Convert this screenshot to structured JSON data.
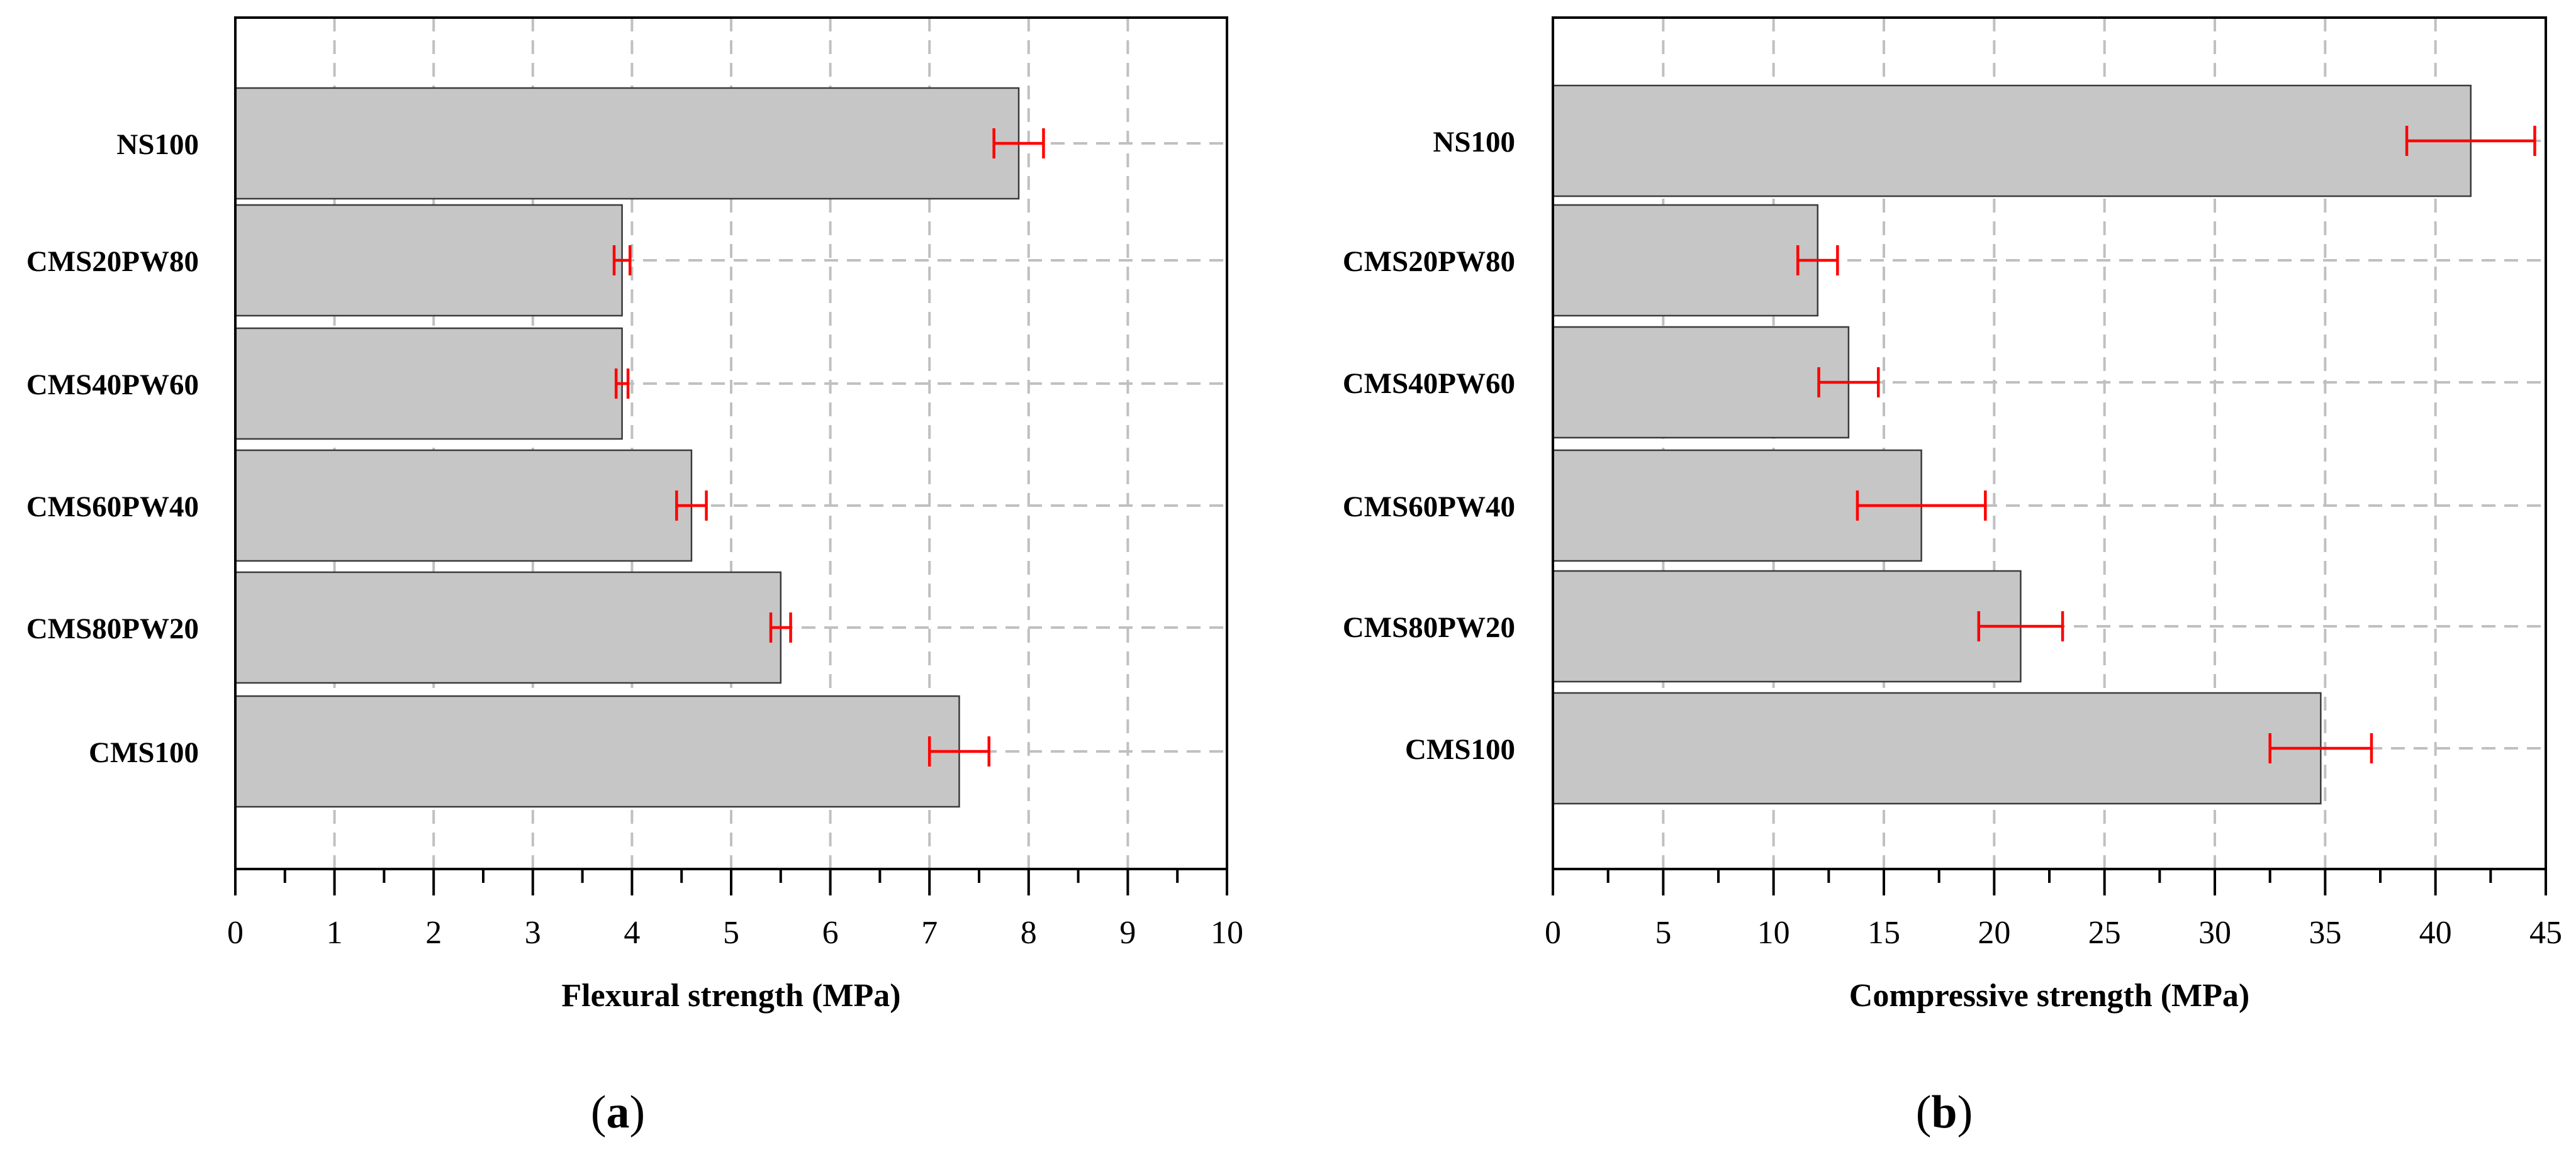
{
  "chart_data": [
    {
      "type": "bar",
      "orientation": "horizontal",
      "panel_label": "a",
      "categories": [
        "NS100",
        "CMS20PW80",
        "CMS40PW60",
        "CMS60PW40",
        "CMS80PW20",
        "CMS100"
      ],
      "values": [
        7.9,
        3.9,
        3.9,
        4.6,
        5.5,
        7.3
      ],
      "errors": [
        0.25,
        0.08,
        0.06,
        0.15,
        0.1,
        0.3
      ],
      "xlabel": "Flexural strength (MPa)",
      "ylabel": "",
      "xlim": [
        0,
        10
      ],
      "major_ticks": [
        0,
        1,
        2,
        3,
        4,
        5,
        6,
        7,
        8,
        9,
        10
      ],
      "minor_tick_step": 0.5,
      "grid": true,
      "colors": {
        "bar": "#c6c6c6",
        "error": "#ff0000",
        "grid": "#c0c0c0"
      }
    },
    {
      "type": "bar",
      "orientation": "horizontal",
      "panel_label": "b",
      "categories": [
        "NS100",
        "CMS20PW80",
        "CMS40PW60",
        "CMS60PW40",
        "CMS80PW20",
        "CMS100"
      ],
      "values": [
        41.6,
        12.0,
        13.4,
        16.7,
        21.2,
        34.8
      ],
      "errors": [
        2.9,
        0.9,
        1.35,
        2.9,
        1.9,
        2.3
      ],
      "xlabel": "Compressive strength (MPa)",
      "ylabel": "",
      "xlim": [
        0,
        45
      ],
      "major_ticks": [
        0,
        5,
        10,
        15,
        20,
        25,
        30,
        35,
        40,
        45
      ],
      "minor_tick_step": 2.5,
      "grid": true,
      "colors": {
        "bar": "#c6c6c6",
        "error": "#ff0000",
        "grid": "#c0c0c0"
      }
    }
  ]
}
